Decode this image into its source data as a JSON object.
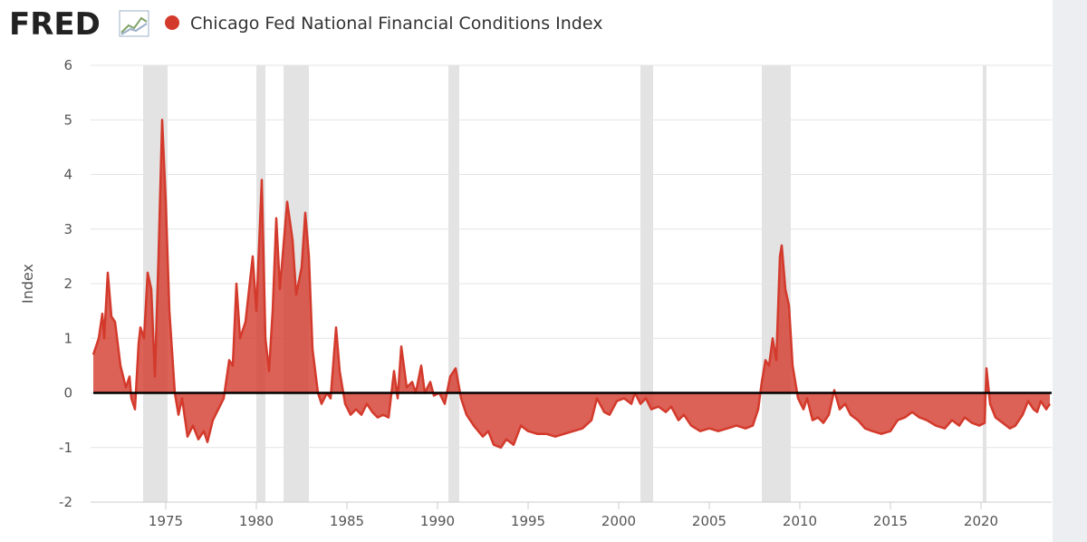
{
  "chart_data": {
    "type": "area",
    "logo": "FRED",
    "ylabel": "Index",
    "series": [
      {
        "name": "Chicago Fed National Financial Conditions Index",
        "color": "#d33a2c"
      }
    ],
    "x": [
      1971.0,
      1971.3,
      1971.5,
      1971.6,
      1971.8,
      1972.0,
      1972.2,
      1972.5,
      1972.8,
      1973.0,
      1973.1,
      1973.3,
      1973.5,
      1973.6,
      1973.8,
      1974.0,
      1974.2,
      1974.4,
      1974.6,
      1974.8,
      1975.0,
      1975.2,
      1975.5,
      1975.7,
      1975.9,
      1976.2,
      1976.5,
      1976.8,
      1977.1,
      1977.3,
      1977.6,
      1977.9,
      1978.2,
      1978.5,
      1978.7,
      1978.9,
      1979.1,
      1979.4,
      1979.8,
      1980.0,
      1980.3,
      1980.5,
      1980.7,
      1980.9,
      1981.1,
      1981.3,
      1981.7,
      1982.0,
      1982.2,
      1982.5,
      1982.7,
      1982.9,
      1983.1,
      1983.4,
      1983.6,
      1983.9,
      1984.1,
      1984.4,
      1984.6,
      1984.9,
      1985.2,
      1985.5,
      1985.8,
      1986.1,
      1986.4,
      1986.7,
      1987.0,
      1987.3,
      1987.6,
      1987.8,
      1988.0,
      1988.3,
      1988.6,
      1988.8,
      1989.1,
      1989.3,
      1989.6,
      1989.8,
      1990.1,
      1990.4,
      1990.7,
      1991.0,
      1991.3,
      1991.6,
      1992.0,
      1992.5,
      1992.8,
      1993.1,
      1993.5,
      1993.8,
      1994.2,
      1994.6,
      1995.0,
      1995.5,
      1996.0,
      1996.5,
      1997.0,
      1997.5,
      1998.0,
      1998.5,
      1998.8,
      1999.2,
      1999.5,
      1999.9,
      2000.3,
      2000.7,
      2000.9,
      2001.2,
      2001.5,
      2001.8,
      2002.2,
      2002.6,
      2002.9,
      2003.3,
      2003.6,
      2004.0,
      2004.5,
      2005.0,
      2005.5,
      2006.0,
      2006.5,
      2007.0,
      2007.4,
      2007.7,
      2007.9,
      2008.1,
      2008.3,
      2008.5,
      2008.7,
      2008.9,
      2009.0,
      2009.2,
      2009.4,
      2009.6,
      2009.9,
      2010.2,
      2010.4,
      2010.7,
      2011.0,
      2011.3,
      2011.6,
      2011.9,
      2012.2,
      2012.5,
      2012.8,
      2013.2,
      2013.6,
      2014.0,
      2014.5,
      2015.0,
      2015.4,
      2015.8,
      2016.2,
      2016.6,
      2017.0,
      2017.5,
      2018.0,
      2018.4,
      2018.8,
      2019.1,
      2019.5,
      2019.9,
      2020.2,
      2020.3,
      2020.5,
      2020.8,
      2021.2,
      2021.6,
      2021.9,
      2022.3,
      2022.6,
      2022.9,
      2023.1,
      2023.3,
      2023.6,
      2023.8
    ],
    "values": [
      0.7,
      1.0,
      1.45,
      1.0,
      2.2,
      1.4,
      1.3,
      0.5,
      0.1,
      0.3,
      -0.1,
      -0.3,
      0.9,
      1.2,
      1.0,
      2.2,
      1.9,
      0.3,
      2.5,
      5.0,
      3.5,
      1.5,
      0.0,
      -0.4,
      -0.1,
      -0.8,
      -0.6,
      -0.85,
      -0.7,
      -0.9,
      -0.5,
      -0.3,
      -0.1,
      0.6,
      0.5,
      2.0,
      1.0,
      1.3,
      2.5,
      1.5,
      3.9,
      1.0,
      0.4,
      1.5,
      3.2,
      1.9,
      3.5,
      2.8,
      1.8,
      2.3,
      3.3,
      2.5,
      0.8,
      0.0,
      -0.2,
      0.0,
      -0.1,
      1.2,
      0.4,
      -0.2,
      -0.4,
      -0.3,
      -0.4,
      -0.2,
      -0.35,
      -0.45,
      -0.4,
      -0.45,
      0.4,
      -0.1,
      0.85,
      0.1,
      0.2,
      0.0,
      0.5,
      0.0,
      0.2,
      -0.05,
      0.0,
      -0.2,
      0.3,
      0.45,
      -0.1,
      -0.4,
      -0.6,
      -0.8,
      -0.7,
      -0.95,
      -1.0,
      -0.85,
      -0.95,
      -0.6,
      -0.7,
      -0.75,
      -0.75,
      -0.8,
      -0.75,
      -0.7,
      -0.65,
      -0.5,
      -0.1,
      -0.35,
      -0.4,
      -0.15,
      -0.1,
      -0.2,
      0.0,
      -0.2,
      -0.1,
      -0.3,
      -0.25,
      -0.35,
      -0.25,
      -0.5,
      -0.4,
      -0.6,
      -0.7,
      -0.65,
      -0.7,
      -0.65,
      -0.6,
      -0.65,
      -0.6,
      -0.3,
      0.2,
      0.6,
      0.5,
      1.0,
      0.6,
      2.5,
      2.7,
      1.9,
      1.6,
      0.5,
      -0.1,
      -0.3,
      -0.1,
      -0.5,
      -0.45,
      -0.55,
      -0.4,
      0.05,
      -0.3,
      -0.2,
      -0.4,
      -0.5,
      -0.65,
      -0.7,
      -0.75,
      -0.7,
      -0.5,
      -0.45,
      -0.35,
      -0.45,
      -0.5,
      -0.6,
      -0.65,
      -0.5,
      -0.6,
      -0.45,
      -0.55,
      -0.6,
      -0.55,
      0.45,
      -0.2,
      -0.45,
      -0.55,
      -0.65,
      -0.6,
      -0.4,
      -0.15,
      -0.3,
      -0.35,
      -0.15,
      -0.3,
      -0.2
    ],
    "recessions": [
      [
        1973.75,
        1975.1
      ],
      [
        1980.0,
        1980.5
      ],
      [
        1981.5,
        1982.9
      ],
      [
        1990.6,
        1991.2
      ],
      [
        2001.2,
        2001.9
      ],
      [
        2007.9,
        2009.5
      ],
      [
        2020.1,
        2020.3
      ]
    ],
    "recession_color": "#e3e3e3",
    "xlim": [
      1971.0,
      2023.8
    ],
    "xticks": [
      1975,
      1980,
      1985,
      1990,
      1995,
      2000,
      2005,
      2010,
      2015,
      2020
    ],
    "ylim": [
      -2,
      6
    ],
    "yticks": [
      -2,
      -1,
      0,
      1,
      2,
      3,
      4,
      5,
      6
    ],
    "grid": true
  }
}
